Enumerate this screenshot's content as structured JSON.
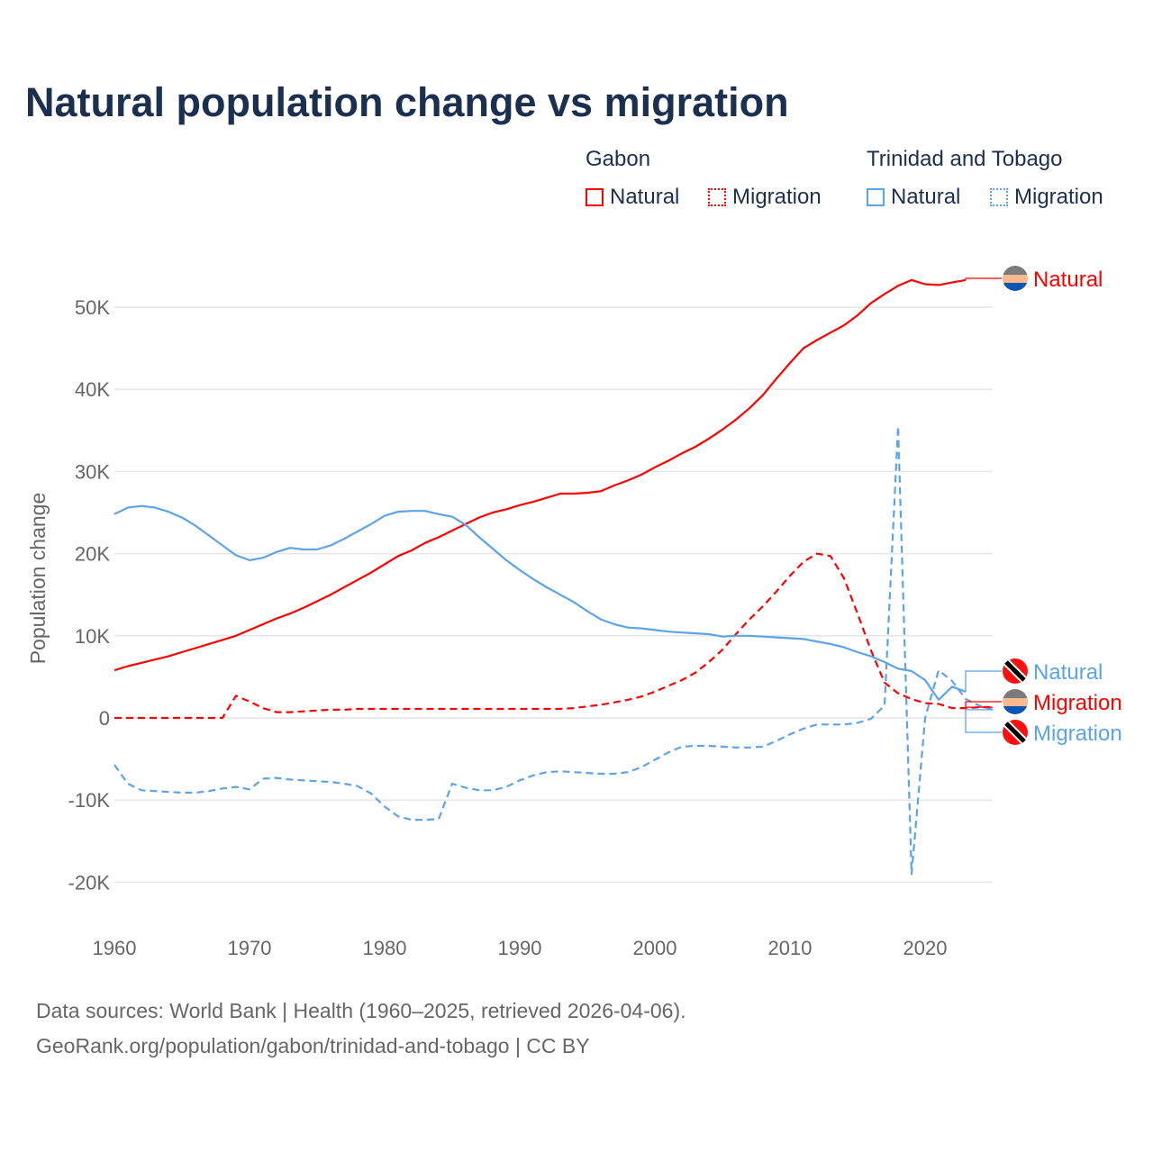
{
  "chart_data": {
    "type": "line",
    "title": "Natural population change vs migration",
    "xlabel": "",
    "ylabel": "Population change",
    "xlim": [
      1960,
      2025
    ],
    "ylim": [
      -25000,
      55000
    ],
    "x_ticks": [
      1960,
      1970,
      1980,
      1990,
      2000,
      2010,
      2020
    ],
    "x_tick_labels": [
      "1960",
      "1970",
      "1980",
      "1990",
      "2000",
      "2010",
      "2020"
    ],
    "y_ticks": [
      -20000,
      -10000,
      0,
      10000,
      20000,
      30000,
      40000,
      50000
    ],
    "y_tick_labels": [
      "-20K",
      "-10K",
      "0",
      "10K",
      "20K",
      "30K",
      "40K",
      "50K"
    ],
    "grid": true,
    "legend": {
      "placement": "top-right",
      "groups": [
        {
          "name": "Gabon",
          "items": [
            "Natural",
            "Migration"
          ]
        },
        {
          "name": "Trinidad and Tobago",
          "items": [
            "Natural",
            "Migration"
          ]
        }
      ]
    },
    "series": [
      {
        "country": "Gabon",
        "name": "Natural",
        "color": "#ff0000",
        "dash": false,
        "start_year": 1960,
        "values_k": [
          5.8,
          6.3,
          6.7,
          7.1,
          7.5,
          8.0,
          8.5,
          9.0,
          9.5,
          10.0,
          10.7,
          11.4,
          12.1,
          12.7,
          13.4,
          14.2,
          15.0,
          15.9,
          16.8,
          17.7,
          18.7,
          19.7,
          20.4,
          21.3,
          22.0,
          22.8,
          23.6,
          24.4,
          25.0,
          25.4,
          25.9,
          26.3,
          26.8,
          27.3,
          27.3,
          27.4,
          27.6,
          28.3,
          28.9,
          29.6,
          30.5,
          31.3,
          32.2,
          33.0,
          34.0,
          35.1,
          36.3,
          37.7,
          39.3,
          41.3,
          43.2,
          45.0,
          46.0,
          46.9,
          47.8,
          49.0,
          50.5,
          51.6,
          52.6,
          53.3,
          52.8,
          52.7,
          53.0,
          53.3
        ]
      },
      {
        "country": "Gabon",
        "name": "Migration",
        "color": "#ff0000",
        "dash": true,
        "start_year": 1960,
        "values_k": [
          0,
          0,
          0,
          0,
          0,
          0,
          0,
          0,
          0,
          2.7,
          2.0,
          1.2,
          0.7,
          0.7,
          0.8,
          0.9,
          1.0,
          1.0,
          1.1,
          1.1,
          1.1,
          1.1,
          1.1,
          1.1,
          1.1,
          1.1,
          1.1,
          1.1,
          1.1,
          1.1,
          1.1,
          1.1,
          1.1,
          1.1,
          1.2,
          1.4,
          1.6,
          1.9,
          2.2,
          2.6,
          3.2,
          3.9,
          4.6,
          5.5,
          6.8,
          8.3,
          10.2,
          12.0,
          13.6,
          15.4,
          17.3,
          19.0,
          20.0,
          19.7,
          17.0,
          12.7,
          8.2,
          4.3,
          3.0,
          2.3,
          1.8,
          1.7,
          1.2,
          1.2,
          1.3,
          1.3
        ]
      },
      {
        "country": "Trinidad and Tobago",
        "name": "Natural",
        "color": "#5ba3ea",
        "dash": false,
        "start_year": 1960,
        "values_k": [
          24.8,
          25.6,
          25.8,
          25.6,
          25.1,
          24.4,
          23.4,
          22.2,
          21.0,
          19.8,
          19.2,
          19.5,
          20.2,
          20.7,
          20.5,
          20.5,
          21.0,
          21.8,
          22.7,
          23.6,
          24.6,
          25.1,
          25.2,
          25.2,
          24.8,
          24.5,
          23.5,
          22.0,
          20.6,
          19.2,
          18.0,
          16.9,
          15.9,
          15.0,
          14.1,
          13.0,
          12.0,
          11.4,
          11.0,
          10.9,
          10.7,
          10.5,
          10.4,
          10.3,
          10.2,
          9.9,
          10.0,
          10.0,
          9.9,
          9.8,
          9.7,
          9.6,
          9.3,
          9.0,
          8.6,
          8.0,
          7.5,
          6.8,
          6.0,
          5.7,
          4.6,
          2.2,
          3.8,
          3.2
        ]
      },
      {
        "country": "Trinidad and Tobago",
        "name": "Migration",
        "color": "#5ba3ea",
        "dash": true,
        "start_year": 1960,
        "values_k": [
          -5.7,
          -8.0,
          -8.8,
          -8.9,
          -9.0,
          -9.1,
          -9.1,
          -8.9,
          -8.6,
          -8.4,
          -8.7,
          -7.4,
          -7.3,
          -7.5,
          -7.6,
          -7.7,
          -7.8,
          -8.0,
          -8.3,
          -9.2,
          -10.8,
          -12.0,
          -12.4,
          -12.4,
          -12.3,
          -8.0,
          -8.5,
          -8.8,
          -8.8,
          -8.4,
          -7.6,
          -7.0,
          -6.6,
          -6.5,
          -6.6,
          -6.7,
          -6.8,
          -6.8,
          -6.6,
          -6.0,
          -5.1,
          -4.2,
          -3.5,
          -3.4,
          -3.4,
          -3.5,
          -3.6,
          -3.6,
          -3.5,
          -2.8,
          -2.0,
          -1.3,
          -0.8,
          -0.8,
          -0.8,
          -0.6,
          -0.1,
          1.5,
          35.5,
          -19.0,
          0.0,
          5.8,
          4.5,
          2.3,
          1.5,
          1.0
        ]
      }
    ],
    "end_labels": [
      {
        "text": "Natural",
        "country": "Gabon",
        "color": "#ff0000"
      },
      {
        "text": "Natural",
        "country": "Trinidad and Tobago",
        "color": "#5ba3ea"
      },
      {
        "text": "Migration",
        "country": "Gabon",
        "color": "#ff0000"
      },
      {
        "text": "Migration",
        "country": "Trinidad and Tobago",
        "color": "#5ba3ea"
      }
    ]
  },
  "footer": {
    "line1": "Data sources: World Bank | Health (1960–2025, retrieved 2026-04-06).",
    "line2": "GeoRank.org/population/gabon/trinidad-and-tobago | CC BY"
  }
}
